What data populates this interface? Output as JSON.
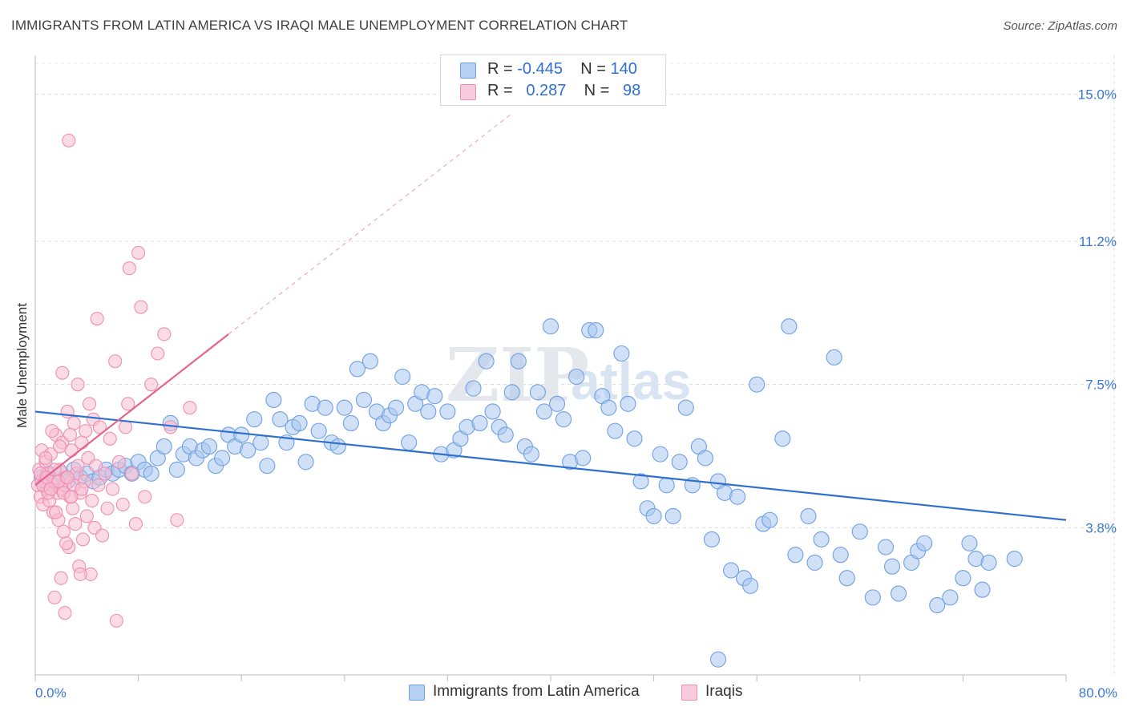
{
  "header": {
    "title": "IMMIGRANTS FROM LATIN AMERICA VS IRAQI MALE UNEMPLOYMENT CORRELATION CHART",
    "source": "Source: ZipAtlas.com"
  },
  "watermark": {
    "zip": "ZIP",
    "atlas": "atlas"
  },
  "legend": {
    "rows": [
      {
        "r_label": "R =",
        "r_value": "-0.445",
        "n_label": "N =",
        "n_value": "140"
      },
      {
        "r_label": "R =",
        "r_value": "0.287",
        "n_label": "N =",
        "n_value": "98"
      }
    ]
  },
  "chart_data": {
    "type": "scatter",
    "title": "IMMIGRANTS FROM LATIN AMERICA VS IRAQI MALE UNEMPLOYMENT CORRELATION CHART",
    "xlabel": "",
    "ylabel": "Male Unemployment",
    "xlim": [
      0,
      80
    ],
    "ylim": [
      0,
      16
    ],
    "x_tick_labels": [
      {
        "value": 0,
        "label": "0.0%"
      },
      {
        "value": 80,
        "label": "80.0%"
      }
    ],
    "y_tick_labels": [
      {
        "value": 3.8,
        "label": "3.8%"
      },
      {
        "value": 7.5,
        "label": "7.5%"
      },
      {
        "value": 11.2,
        "label": "11.2%"
      },
      {
        "value": 15.0,
        "label": "15.0%"
      }
    ],
    "grid": true,
    "legend_position": "top-center",
    "series": [
      {
        "name": "Immigrants from Latin America",
        "color": "#6fa0e3",
        "fill": "#a9c6ef",
        "r": -0.445,
        "n": 140,
        "trend": {
          "x": [
            0,
            80
          ],
          "y": [
            6.8,
            4.0
          ]
        },
        "points": [
          [
            0.5,
            5.1
          ],
          [
            1.0,
            5.2
          ],
          [
            1.5,
            5.0
          ],
          [
            2.0,
            5.2
          ],
          [
            2.5,
            5.0
          ],
          [
            3.0,
            5.3
          ],
          [
            3.5,
            5.1
          ],
          [
            4.0,
            5.2
          ],
          [
            4.5,
            5.0
          ],
          [
            5.0,
            5.1
          ],
          [
            5.5,
            5.3
          ],
          [
            6.0,
            5.2
          ],
          [
            6.5,
            5.3
          ],
          [
            7.0,
            5.4
          ],
          [
            7.5,
            5.2
          ],
          [
            8.0,
            5.5
          ],
          [
            8.5,
            5.3
          ],
          [
            9.0,
            5.2
          ],
          [
            9.5,
            5.6
          ],
          [
            10.0,
            5.9
          ],
          [
            10.5,
            6.5
          ],
          [
            11.0,
            5.3
          ],
          [
            11.5,
            5.7
          ],
          [
            12.0,
            5.9
          ],
          [
            12.5,
            5.6
          ],
          [
            13.0,
            5.8
          ],
          [
            13.5,
            5.9
          ],
          [
            14.0,
            5.4
          ],
          [
            14.5,
            5.6
          ],
          [
            15.0,
            6.2
          ],
          [
            15.5,
            5.9
          ],
          [
            16.0,
            6.2
          ],
          [
            16.5,
            5.8
          ],
          [
            17.0,
            6.6
          ],
          [
            17.5,
            6.0
          ],
          [
            18.0,
            5.4
          ],
          [
            18.5,
            7.1
          ],
          [
            19.0,
            6.6
          ],
          [
            19.5,
            6.0
          ],
          [
            20.0,
            6.4
          ],
          [
            20.5,
            6.5
          ],
          [
            21.0,
            5.5
          ],
          [
            21.5,
            7.0
          ],
          [
            22.0,
            6.3
          ],
          [
            22.5,
            6.9
          ],
          [
            23.0,
            6.0
          ],
          [
            23.5,
            5.9
          ],
          [
            24.0,
            6.9
          ],
          [
            24.5,
            6.5
          ],
          [
            25.0,
            7.9
          ],
          [
            25.5,
            7.1
          ],
          [
            26.0,
            8.1
          ],
          [
            26.5,
            6.8
          ],
          [
            27.0,
            6.5
          ],
          [
            27.5,
            6.7
          ],
          [
            28.0,
            6.9
          ],
          [
            28.5,
            7.7
          ],
          [
            29.0,
            6.0
          ],
          [
            29.5,
            7.0
          ],
          [
            30.0,
            7.3
          ],
          [
            30.5,
            6.8
          ],
          [
            31.0,
            7.2
          ],
          [
            31.5,
            5.7
          ],
          [
            32.0,
            6.8
          ],
          [
            32.5,
            5.8
          ],
          [
            33.0,
            6.1
          ],
          [
            33.5,
            6.4
          ],
          [
            34.0,
            7.4
          ],
          [
            34.5,
            6.5
          ],
          [
            35.0,
            8.1
          ],
          [
            35.5,
            6.8
          ],
          [
            36.0,
            6.4
          ],
          [
            36.5,
            6.2
          ],
          [
            37.0,
            7.3
          ],
          [
            37.5,
            8.1
          ],
          [
            38.0,
            5.9
          ],
          [
            38.5,
            5.7
          ],
          [
            39.0,
            7.3
          ],
          [
            39.5,
            6.8
          ],
          [
            40.0,
            9.0
          ],
          [
            40.5,
            7.0
          ],
          [
            41.0,
            6.6
          ],
          [
            41.5,
            5.5
          ],
          [
            42.0,
            7.7
          ],
          [
            42.5,
            5.6
          ],
          [
            43.0,
            8.9
          ],
          [
            43.5,
            8.9
          ],
          [
            44.0,
            7.2
          ],
          [
            44.5,
            6.9
          ],
          [
            45.0,
            6.3
          ],
          [
            45.5,
            8.3
          ],
          [
            46.0,
            7.0
          ],
          [
            46.5,
            6.1
          ],
          [
            47.0,
            5.0
          ],
          [
            47.5,
            4.3
          ],
          [
            48.0,
            4.1
          ],
          [
            48.5,
            5.7
          ],
          [
            49.0,
            4.9
          ],
          [
            49.5,
            4.1
          ],
          [
            50.0,
            5.5
          ],
          [
            50.5,
            6.9
          ],
          [
            51.0,
            4.9
          ],
          [
            51.5,
            5.9
          ],
          [
            52.0,
            5.6
          ],
          [
            52.5,
            3.5
          ],
          [
            53.0,
            5.0
          ],
          [
            53.5,
            4.7
          ],
          [
            54.0,
            2.7
          ],
          [
            54.5,
            4.6
          ],
          [
            55.0,
            2.5
          ],
          [
            55.5,
            2.3
          ],
          [
            56.0,
            7.5
          ],
          [
            56.5,
            3.9
          ],
          [
            57.0,
            4.0
          ],
          [
            58.0,
            6.1
          ],
          [
            58.5,
            9.0
          ],
          [
            59.0,
            3.1
          ],
          [
            60.0,
            4.1
          ],
          [
            60.5,
            2.9
          ],
          [
            61.0,
            3.5
          ],
          [
            62.0,
            8.2
          ],
          [
            62.5,
            3.1
          ],
          [
            63.0,
            2.5
          ],
          [
            64.0,
            3.7
          ],
          [
            65.0,
            2.0
          ],
          [
            66.0,
            3.3
          ],
          [
            66.5,
            2.8
          ],
          [
            67.0,
            2.1
          ],
          [
            68.0,
            2.9
          ],
          [
            68.5,
            3.2
          ],
          [
            69.0,
            3.4
          ],
          [
            70.0,
            1.8
          ],
          [
            71.0,
            2.0
          ],
          [
            72.0,
            2.5
          ],
          [
            72.5,
            3.4
          ],
          [
            73.0,
            3.0
          ],
          [
            73.5,
            2.2
          ],
          [
            74.0,
            2.9
          ],
          [
            76.0,
            3.0
          ],
          [
            53.0,
            0.4
          ]
        ]
      },
      {
        "name": "Iraqis",
        "color": "#ee8fb0",
        "fill": "#f7bed2",
        "r": 0.287,
        "n": 98,
        "trend": {
          "x": [
            0,
            15
          ],
          "y": [
            4.9,
            8.8
          ]
        },
        "trend_extension": {
          "x": [
            15,
            37
          ],
          "y": [
            8.8,
            14.5
          ]
        },
        "points": [
          [
            0.2,
            4.9
          ],
          [
            0.3,
            5.3
          ],
          [
            0.4,
            4.6
          ],
          [
            0.5,
            5.8
          ],
          [
            0.6,
            4.4
          ],
          [
            0.7,
            5.0
          ],
          [
            0.8,
            5.5
          ],
          [
            0.9,
            4.8
          ],
          [
            1.0,
            5.2
          ],
          [
            1.1,
            4.5
          ],
          [
            1.2,
            5.7
          ],
          [
            1.3,
            4.9
          ],
          [
            1.4,
            4.2
          ],
          [
            1.5,
            5.0
          ],
          [
            1.6,
            6.2
          ],
          [
            1.7,
            4.7
          ],
          [
            1.8,
            4.0
          ],
          [
            1.9,
            5.3
          ],
          [
            2.0,
            4.8
          ],
          [
            2.1,
            6.0
          ],
          [
            2.2,
            3.7
          ],
          [
            2.3,
            4.9
          ],
          [
            2.4,
            5.1
          ],
          [
            2.5,
            6.8
          ],
          [
            2.6,
            3.3
          ],
          [
            2.7,
            4.6
          ],
          [
            2.8,
            5.8
          ],
          [
            2.9,
            4.3
          ],
          [
            3.0,
            6.5
          ],
          [
            3.1,
            3.9
          ],
          [
            3.2,
            5.2
          ],
          [
            3.3,
            7.5
          ],
          [
            3.4,
            2.8
          ],
          [
            3.5,
            4.7
          ],
          [
            3.6,
            6.0
          ],
          [
            3.7,
            3.5
          ],
          [
            3.8,
            5.0
          ],
          [
            3.9,
            6.3
          ],
          [
            4.0,
            4.1
          ],
          [
            4.1,
            5.6
          ],
          [
            4.2,
            7.0
          ],
          [
            4.3,
            2.6
          ],
          [
            4.4,
            4.5
          ],
          [
            4.5,
            6.6
          ],
          [
            4.6,
            3.8
          ],
          [
            4.7,
            5.4
          ],
          [
            4.8,
            9.2
          ],
          [
            4.9,
            4.9
          ],
          [
            5.0,
            6.4
          ],
          [
            5.2,
            3.6
          ],
          [
            5.4,
            5.2
          ],
          [
            5.6,
            4.3
          ],
          [
            5.8,
            6.1
          ],
          [
            6.0,
            4.8
          ],
          [
            6.2,
            8.1
          ],
          [
            6.5,
            5.5
          ],
          [
            6.8,
            4.4
          ],
          [
            7.0,
            6.4
          ],
          [
            7.2,
            7.0
          ],
          [
            7.5,
            5.2
          ],
          [
            7.8,
            3.9
          ],
          [
            8.0,
            10.9
          ],
          [
            8.2,
            9.5
          ],
          [
            8.5,
            4.6
          ],
          [
            9.0,
            7.5
          ],
          [
            9.5,
            8.3
          ],
          [
            10.0,
            8.8
          ],
          [
            10.5,
            6.4
          ],
          [
            11.0,
            4.0
          ],
          [
            12.0,
            6.9
          ],
          [
            2.6,
            13.8
          ],
          [
            7.3,
            10.5
          ],
          [
            1.5,
            2.0
          ],
          [
            2.0,
            2.5
          ],
          [
            2.3,
            1.6
          ],
          [
            3.5,
            2.6
          ],
          [
            6.3,
            1.4
          ],
          [
            0.5,
            5.0
          ],
          [
            0.8,
            5.6
          ],
          [
            1.0,
            4.7
          ],
          [
            1.3,
            6.3
          ],
          [
            1.6,
            4.2
          ],
          [
            1.9,
            5.9
          ],
          [
            2.1,
            7.8
          ],
          [
            2.4,
            3.4
          ],
          [
            2.7,
            6.2
          ],
          [
            3.0,
            4.9
          ],
          [
            3.3,
            5.4
          ],
          [
            3.6,
            4.8
          ],
          [
            0.4,
            5.2
          ],
          [
            0.6,
            4.9
          ],
          [
            0.9,
            5.1
          ],
          [
            1.2,
            4.8
          ],
          [
            1.5,
            5.3
          ],
          [
            1.8,
            5.0
          ],
          [
            2.2,
            4.7
          ],
          [
            2.5,
            5.1
          ],
          [
            2.8,
            4.6
          ]
        ]
      }
    ]
  }
}
